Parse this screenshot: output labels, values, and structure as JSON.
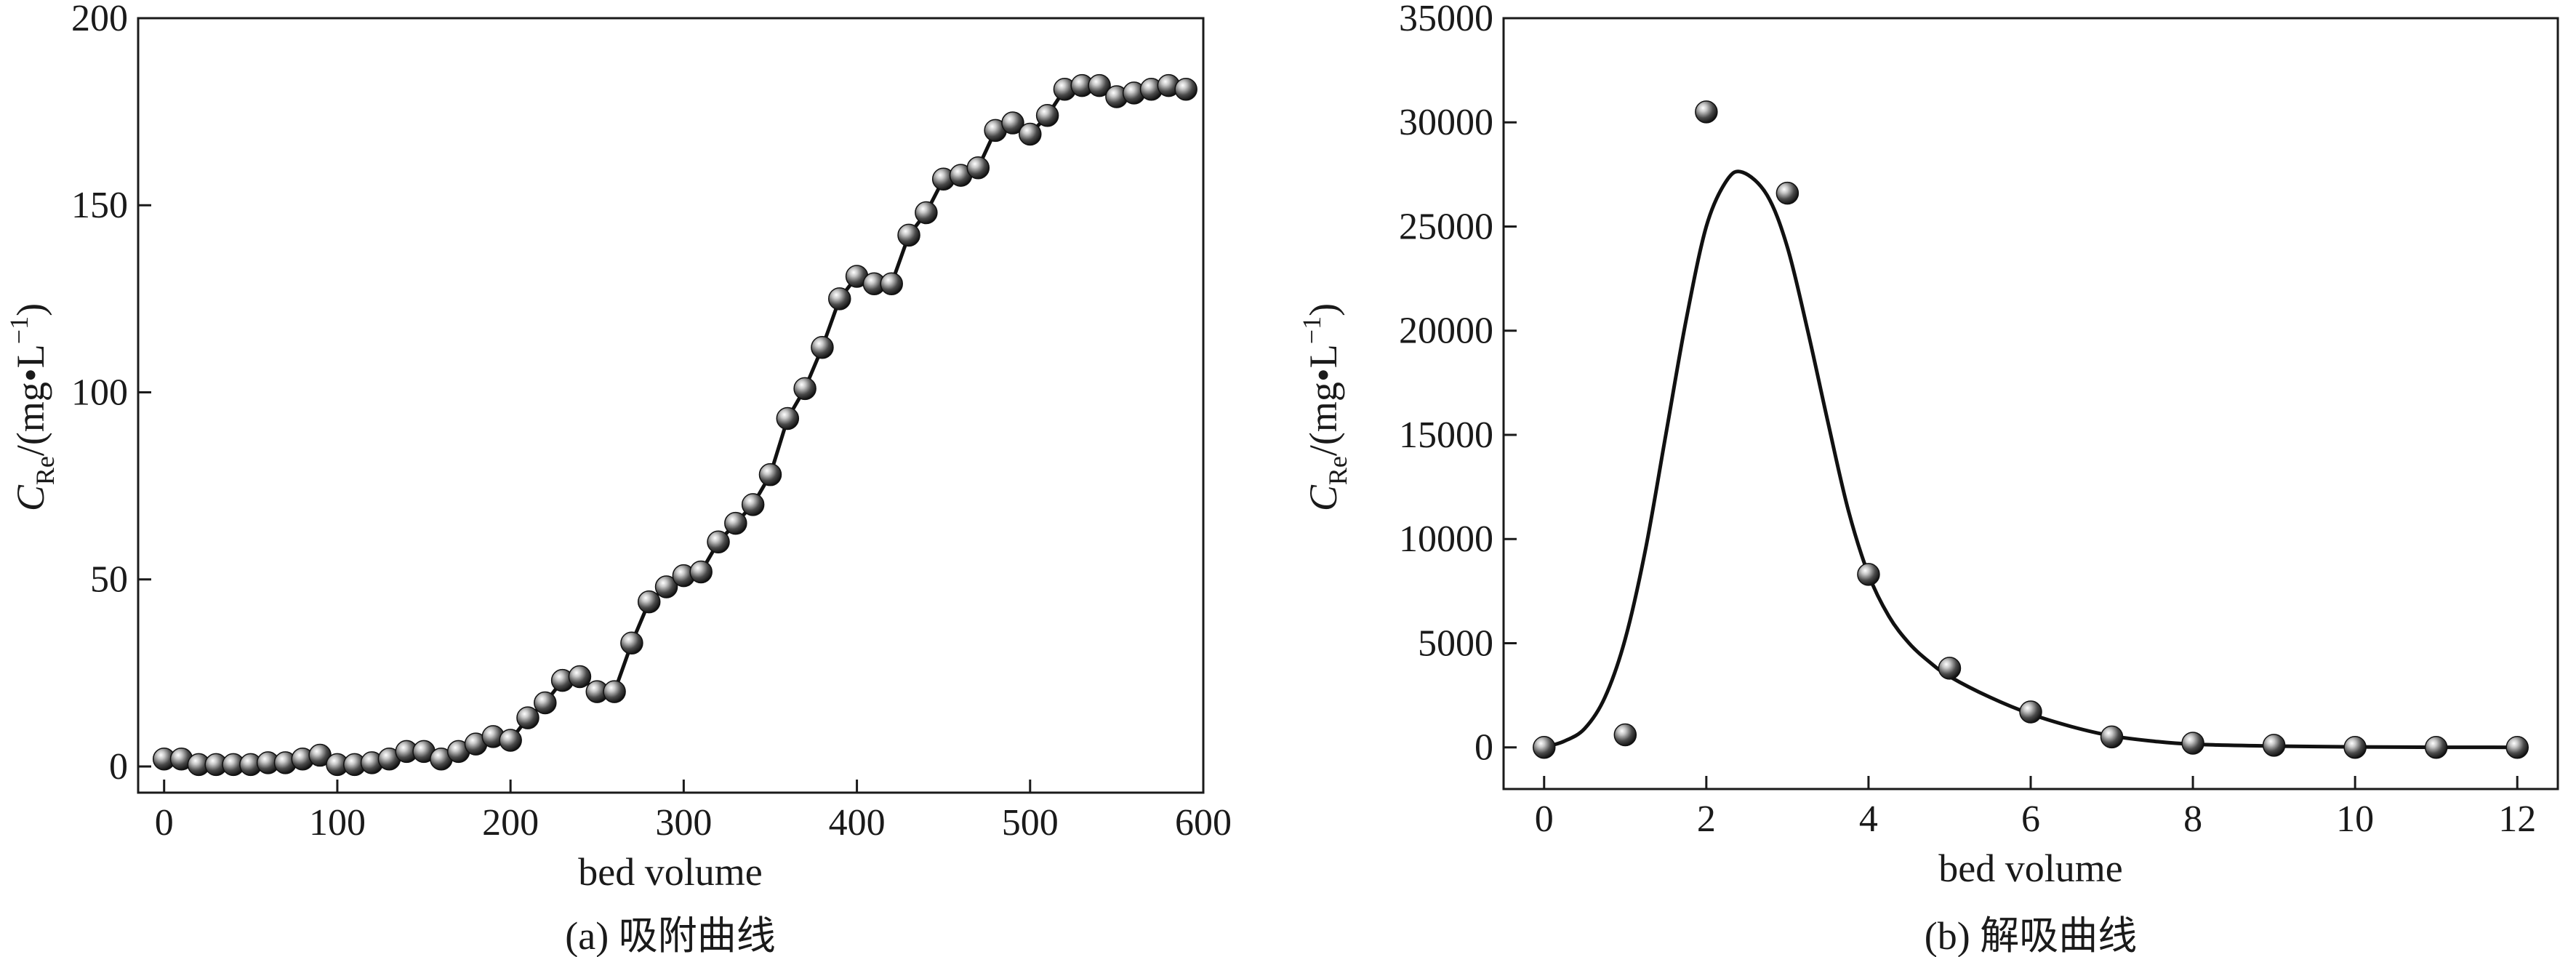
{
  "chart_data": [
    {
      "type": "scatter",
      "caption": "(a) 吸附曲线",
      "xlabel": "bed volume",
      "ylabel": {
        "var": "C",
        "sub": "Re",
        "unit_prefix": "/(mg",
        "dot": "•",
        "unit_L": "L",
        "sup": "−1",
        "close": ")"
      },
      "xlim": [
        -15,
        600
      ],
      "ylim": [
        -7,
        200
      ],
      "xticks": [
        0,
        100,
        200,
        300,
        400,
        500,
        600
      ],
      "yticks": [
        0,
        50,
        100,
        150,
        200
      ],
      "xtick_labels": [
        "0",
        "100",
        "200",
        "300",
        "400",
        "500",
        "600"
      ],
      "ytick_labels": [
        "0",
        "50",
        "100",
        "150",
        "200"
      ],
      "grid": false,
      "curve": "connect",
      "x": [
        0,
        10,
        20,
        30,
        40,
        50,
        60,
        70,
        80,
        90,
        100,
        110,
        120,
        130,
        140,
        150,
        160,
        170,
        180,
        190,
        200,
        210,
        220,
        230,
        240,
        250,
        260,
        270,
        280,
        290,
        300,
        310,
        320,
        330,
        340,
        350,
        360,
        370,
        380,
        390,
        400,
        410,
        420,
        430,
        440,
        450,
        460,
        470,
        480,
        490,
        500,
        510,
        520,
        530,
        540,
        550,
        560,
        570,
        580,
        590
      ],
      "y": [
        2,
        2,
        0.5,
        0.5,
        0.5,
        0.5,
        1,
        1,
        2,
        3,
        0.5,
        0.5,
        1,
        2,
        4,
        4,
        2,
        4,
        6,
        8,
        7,
        13,
        17,
        23,
        24,
        20,
        20,
        33,
        44,
        48,
        51,
        52,
        60,
        65,
        70,
        78,
        93,
        101,
        112,
        125,
        131,
        129,
        129,
        142,
        148,
        157,
        158,
        160,
        170,
        172,
        169,
        174,
        181,
        182,
        182,
        179,
        180,
        181,
        182,
        181
      ]
    },
    {
      "type": "scatter",
      "caption": "(b) 解吸曲线",
      "xlabel": "bed volume",
      "ylabel": {
        "var": "C",
        "sub": "Re",
        "unit_prefix": "/(mg",
        "dot": "•",
        "unit_L": "L",
        "sup": "−1",
        "close": ")"
      },
      "xlim": [
        -0.5,
        12.5
      ],
      "ylim": [
        -2000,
        35000
      ],
      "xticks": [
        0,
        2,
        4,
        6,
        8,
        10,
        12
      ],
      "yticks": [
        0,
        5000,
        10000,
        15000,
        20000,
        25000,
        30000,
        35000
      ],
      "xtick_labels": [
        "0",
        "2",
        "4",
        "6",
        "8",
        "10",
        "12"
      ],
      "ytick_labels": [
        "0",
        "5000",
        "10000",
        "15000",
        "20000",
        "25000",
        "30000",
        "35000"
      ],
      "grid": false,
      "curve": "smooth-fit",
      "x": [
        0,
        1,
        2,
        3,
        4,
        5,
        6,
        7,
        8,
        9,
        10,
        11,
        12
      ],
      "y": [
        0,
        600,
        30500,
        26600,
        8300,
        3800,
        1700,
        500,
        200,
        100,
        0,
        0,
        0
      ],
      "fit_x": [
        0,
        0.25,
        0.5,
        0.75,
        1,
        1.25,
        1.5,
        1.75,
        2,
        2.25,
        2.45,
        2.75,
        3,
        3.25,
        3.5,
        3.75,
        4,
        4.25,
        4.5,
        4.75,
        5,
        5.5,
        6,
        6.5,
        7,
        7.5,
        8,
        9,
        10,
        11,
        12
      ],
      "fit_y": [
        0,
        300,
        900,
        2400,
        5200,
        9500,
        15000,
        20500,
        25000,
        27200,
        27600,
        26500,
        24000,
        20000,
        15600,
        11400,
        8300,
        6300,
        5000,
        4100,
        3400,
        2400,
        1600,
        1000,
        550,
        300,
        150,
        60,
        20,
        5,
        0
      ]
    }
  ]
}
